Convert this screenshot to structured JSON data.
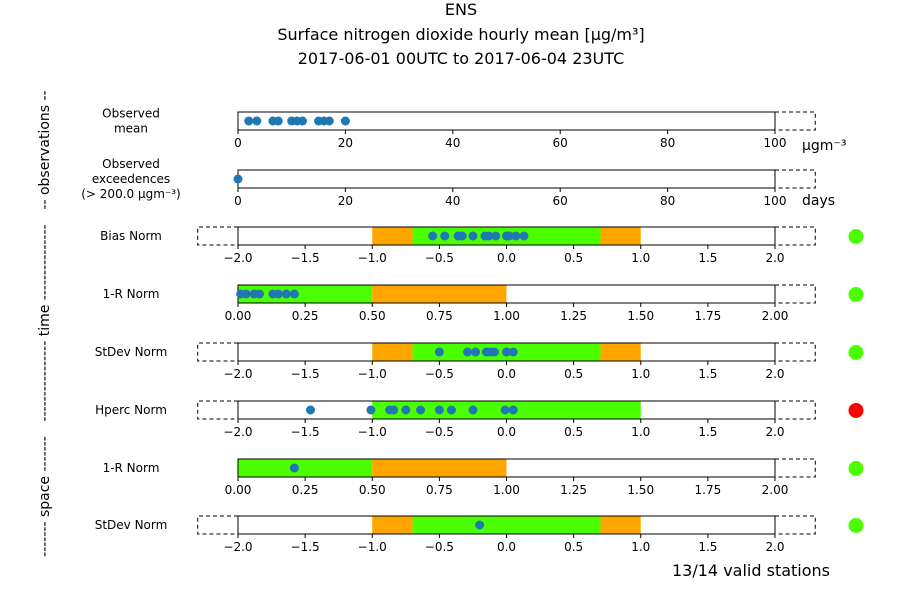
{
  "title": {
    "line1": "ENS",
    "line2": "Surface nitrogen dioxide hourly mean [μg/m³]",
    "line3": "2017-06-01 00UTC to 2017-06-04 23UTC"
  },
  "footer": "13/14 valid stations",
  "groups": [
    {
      "label": "-- observations --",
      "rows": [
        0,
        1
      ]
    },
    {
      "label": "---------------- time ---------------",
      "rows": [
        2,
        3,
        4,
        5
      ]
    },
    {
      "label": "------- space -------",
      "rows": [
        6,
        7
      ]
    }
  ],
  "colors": {
    "green": "#4cff00",
    "orange": "#ffa500",
    "point": "#1f77b4",
    "status_green": "#4cff00",
    "status_red": "#ff0000"
  },
  "chart_data": [
    {
      "type": "scatter",
      "label": "Observed\nmean",
      "unit": "μgm⁻³",
      "xlim": [
        0,
        100
      ],
      "ext_right": 107.5,
      "ticks": [
        "0",
        "20",
        "40",
        "60",
        "80",
        "100"
      ],
      "tick_values": [
        0,
        20,
        40,
        60,
        80,
        100
      ],
      "bands": [],
      "points": [
        2,
        3.5,
        6.5,
        7.5,
        10,
        11,
        12,
        15,
        16,
        17,
        20
      ],
      "status": null
    },
    {
      "type": "scatter",
      "label": "Observed\nexceedences\n(> 200.0 μgm⁻³)",
      "unit": "days",
      "xlim": [
        0,
        100
      ],
      "ext_right": 107.5,
      "ticks": [
        "0",
        "20",
        "40",
        "60",
        "80",
        "100"
      ],
      "tick_values": [
        0,
        20,
        40,
        60,
        80,
        100
      ],
      "bands": [],
      "points": [
        0
      ],
      "status": null
    },
    {
      "type": "scatter",
      "label": "Bias Norm",
      "unit": "",
      "xlim": [
        -2,
        2
      ],
      "ext_left": -2.3,
      "ext_right": 2.3,
      "ticks": [
        "−2.0",
        "−1.5",
        "−1.0",
        "−0.5",
        "0.0",
        "0.5",
        "1.0",
        "1.5",
        "2.0"
      ],
      "tick_values": [
        -2,
        -1.5,
        -1,
        -0.5,
        0,
        0.5,
        1,
        1.5,
        2
      ],
      "bands": [
        {
          "from": -1.0,
          "to": -0.7,
          "color": "orange"
        },
        {
          "from": -0.7,
          "to": 0.7,
          "color": "green"
        },
        {
          "from": 0.7,
          "to": 1.0,
          "color": "orange"
        }
      ],
      "points": [
        -0.55,
        -0.46,
        -0.36,
        -0.33,
        -0.25,
        -0.16,
        -0.13,
        -0.08,
        0.0,
        0.02,
        0.07,
        0.13
      ],
      "status": "green"
    },
    {
      "type": "scatter",
      "label": "1-R Norm",
      "unit": "",
      "xlim": [
        0,
        2
      ],
      "ext_right": 2.15,
      "ticks": [
        "0.00",
        "0.25",
        "0.50",
        "0.75",
        "1.00",
        "1.25",
        "1.50",
        "1.75",
        "2.00"
      ],
      "tick_values": [
        0,
        0.25,
        0.5,
        0.75,
        1.0,
        1.25,
        1.5,
        1.75,
        2.0
      ],
      "bands": [
        {
          "from": 0.0,
          "to": 0.5,
          "color": "green"
        },
        {
          "from": 0.5,
          "to": 1.0,
          "color": "orange"
        }
      ],
      "points": [
        0.01,
        0.03,
        0.06,
        0.08,
        0.13,
        0.15,
        0.18,
        0.21
      ],
      "status": "green"
    },
    {
      "type": "scatter",
      "label": "StDev Norm",
      "unit": "",
      "xlim": [
        -2,
        2
      ],
      "ext_left": -2.3,
      "ext_right": 2.3,
      "ticks": [
        "−2.0",
        "−1.5",
        "−1.0",
        "−0.5",
        "0.0",
        "0.5",
        "1.0",
        "1.5",
        "2.0"
      ],
      "tick_values": [
        -2,
        -1.5,
        -1,
        -0.5,
        0,
        0.5,
        1,
        1.5,
        2
      ],
      "bands": [
        {
          "from": -1.0,
          "to": -0.7,
          "color": "orange"
        },
        {
          "from": -0.7,
          "to": 0.7,
          "color": "green"
        },
        {
          "from": 0.7,
          "to": 1.0,
          "color": "orange"
        }
      ],
      "points": [
        -0.5,
        -0.29,
        -0.23,
        -0.15,
        -0.12,
        -0.09,
        0.0,
        0.05
      ],
      "status": "green"
    },
    {
      "type": "scatter",
      "label": "Hperc Norm",
      "unit": "",
      "xlim": [
        -2,
        2
      ],
      "ext_left": -2.3,
      "ext_right": 2.3,
      "ticks": [
        "−2.0",
        "−1.5",
        "−1.0",
        "−0.5",
        "0.0",
        "0.5",
        "1.0",
        "1.5",
        "2.0"
      ],
      "tick_values": [
        -2,
        -1.5,
        -1,
        -0.5,
        0,
        0.5,
        1,
        1.5,
        2
      ],
      "bands": [
        {
          "from": -1.0,
          "to": 1.0,
          "color": "green"
        }
      ],
      "points": [
        -1.46,
        -1.01,
        -0.87,
        -0.84,
        -0.75,
        -0.64,
        -0.5,
        -0.41,
        -0.25,
        -0.01,
        0.05
      ],
      "status": "red"
    },
    {
      "type": "scatter",
      "label": "1-R Norm",
      "unit": "",
      "xlim": [
        0,
        2
      ],
      "ext_right": 2.15,
      "ticks": [
        "0.00",
        "0.25",
        "0.50",
        "0.75",
        "1.00",
        "1.25",
        "1.50",
        "1.75",
        "2.00"
      ],
      "tick_values": [
        0,
        0.25,
        0.5,
        0.75,
        1.0,
        1.25,
        1.5,
        1.75,
        2.0
      ],
      "bands": [
        {
          "from": 0.0,
          "to": 0.5,
          "color": "green"
        },
        {
          "from": 0.5,
          "to": 1.0,
          "color": "orange"
        }
      ],
      "points": [
        0.21
      ],
      "status": "green"
    },
    {
      "type": "scatter",
      "label": "StDev Norm",
      "unit": "",
      "xlim": [
        -2,
        2
      ],
      "ext_left": -2.3,
      "ext_right": 2.3,
      "ticks": [
        "−2.0",
        "−1.5",
        "−1.0",
        "−0.5",
        "0.0",
        "0.5",
        "1.0",
        "1.5",
        "2.0"
      ],
      "tick_values": [
        -2,
        -1.5,
        -1,
        -0.5,
        0,
        0.5,
        1,
        1.5,
        2
      ],
      "bands": [
        {
          "from": -1.0,
          "to": -0.7,
          "color": "orange"
        },
        {
          "from": -0.7,
          "to": 0.7,
          "color": "green"
        },
        {
          "from": 0.7,
          "to": 1.0,
          "color": "orange"
        }
      ],
      "points": [
        -0.2
      ],
      "status": "green"
    }
  ]
}
